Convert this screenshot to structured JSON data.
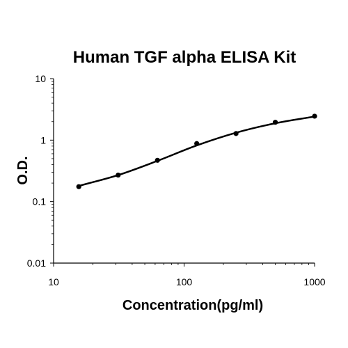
{
  "chart_data": {
    "type": "scatter",
    "title": "Human TGF alpha ELISA Kit",
    "xlabel": "Concentration(pg/ml)",
    "ylabel": "O.D.",
    "x_scale": "log",
    "y_scale": "log",
    "xlim": [
      10,
      1000
    ],
    "ylim": [
      0.01,
      10
    ],
    "x_ticks": [
      "10",
      "100",
      "1000"
    ],
    "y_ticks": [
      "0.01",
      "0.1",
      "1",
      "10"
    ],
    "grid": false,
    "legend": "none",
    "series": [
      {
        "x": [
          15.6,
          31.25,
          62.5,
          125,
          250,
          500,
          1000
        ],
        "y": [
          0.175,
          0.27,
          0.47,
          0.88,
          1.28,
          1.95,
          2.45
        ]
      }
    ],
    "fit_curve": {
      "x": [
        15.6,
        31.25,
        62.5,
        125,
        250,
        500,
        1000
      ],
      "y": [
        0.18,
        0.27,
        0.46,
        0.82,
        1.32,
        1.88,
        2.42
      ]
    },
    "colors": {
      "marker": "#000000",
      "line": "#000000",
      "axis": "#000000"
    }
  }
}
